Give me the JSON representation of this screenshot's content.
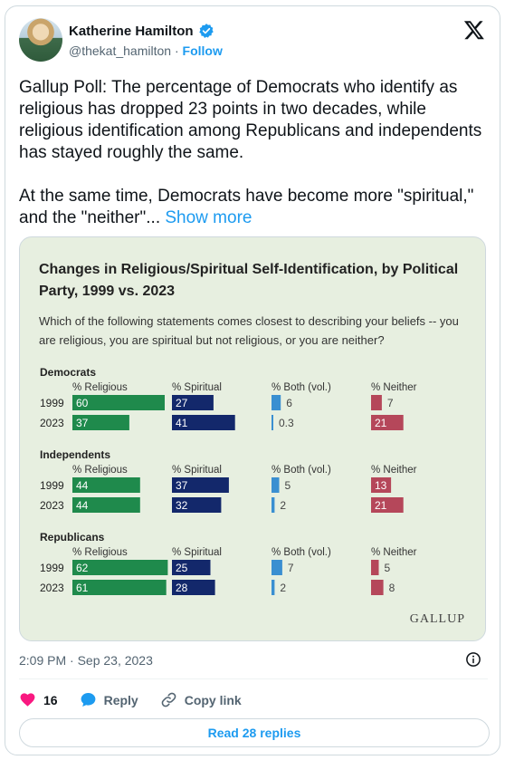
{
  "author": {
    "name": "Katherine Hamilton",
    "handle": "@thekat_hamilton",
    "separator": "·",
    "follow_label": "Follow"
  },
  "tweet": {
    "text": "Gallup Poll: The percentage of Democrats who identify as religious has dropped 23 points in two decades, while religious identification among Republicans and independents has stayed roughly the same.\n\nAt the same time, Democrats have become more \"spiritual,\" and the \"neither\"...",
    "show_more": "Show more"
  },
  "media": {
    "brand": "GALLUP"
  },
  "chart_data": {
    "type": "bar",
    "title": "Changes in Religious/Spiritual Self-Identification, by Political Party, 1999 vs. 2023",
    "subtitle": "Which of the following statements comes closest to describing your beliefs -- you are religious, you are spiritual but not religious, or you are neither?",
    "columns": [
      "% Religious",
      "% Spiritual",
      "% Both (vol.)",
      "% Neither"
    ],
    "column_colors": [
      "#1f8a4c",
      "#13286b",
      "#3a8fd1",
      "#b5475a"
    ],
    "groups": [
      {
        "name": "Democrats",
        "rows": [
          {
            "year": "1999",
            "values": [
              60,
              27,
              6,
              7
            ]
          },
          {
            "year": "2023",
            "values": [
              37,
              41,
              0.3,
              21
            ]
          }
        ]
      },
      {
        "name": "Independents",
        "rows": [
          {
            "year": "1999",
            "values": [
              44,
              37,
              5,
              13
            ]
          },
          {
            "year": "2023",
            "values": [
              44,
              32,
              2,
              21
            ]
          }
        ]
      },
      {
        "name": "Republicans",
        "rows": [
          {
            "year": "1999",
            "values": [
              62,
              25,
              7,
              5
            ]
          },
          {
            "year": "2023",
            "values": [
              61,
              28,
              2,
              8
            ]
          }
        ]
      }
    ]
  },
  "footer": {
    "timestamp": "2:09 PM · Sep 23, 2023",
    "like_count": "16",
    "reply_label": "Reply",
    "copy_link_label": "Copy link",
    "read_replies_label": "Read 28 replies"
  },
  "colors": {
    "accent": "#1d9bf0",
    "like": "#f91880"
  },
  "icons": [
    "verified-badge-icon",
    "x-logo-icon",
    "info-icon",
    "heart-icon",
    "reply-bubble-icon",
    "link-icon"
  ]
}
